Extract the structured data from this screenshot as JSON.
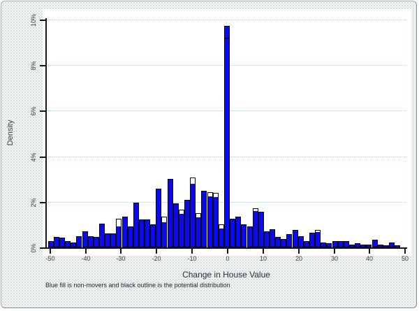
{
  "chart_data": {
    "type": "bar",
    "subtype": "histogram",
    "title": "",
    "xlabel": "Change in House Value",
    "ylabel": "Density",
    "note": "Blue fill is non-movers and black outline is the potential distribution",
    "legend": {
      "fill_meaning": "non-movers",
      "outline_meaning": "potential distribution"
    },
    "x_ticks": [
      -50,
      -40,
      -30,
      -20,
      -10,
      0,
      10,
      20,
      30,
      40,
      50
    ],
    "y_ticks": [
      0,
      2,
      4,
      6,
      8,
      10
    ],
    "y_tick_labels": [
      "0%",
      "2%",
      "4%",
      "6%",
      "8%",
      "10%"
    ],
    "xlim": [
      -52,
      51
    ],
    "ylim": [
      0,
      10
    ],
    "grid": "horizontal-dotted",
    "bin_width": 1.6,
    "units": "percent density",
    "colors": {
      "bar_fill": "#0a0af0",
      "bar_outline": "#000000",
      "gridline": "#8edce9",
      "plot_bg": "#ffffff",
      "page_bg": "#f3f5f5"
    },
    "bars": [
      {
        "x": -49.6,
        "f": 0.28
      },
      {
        "x": -48.0,
        "f": 0.47
      },
      {
        "x": -46.4,
        "f": 0.42
      },
      {
        "x": -44.8,
        "f": 0.28
      },
      {
        "x": -43.2,
        "f": 0.22
      },
      {
        "x": -41.6,
        "f": 0.5
      },
      {
        "x": -40.0,
        "f": 0.72
      },
      {
        "x": -38.4,
        "f": 0.5
      },
      {
        "x": -36.8,
        "f": 0.45
      },
      {
        "x": -35.2,
        "f": 1.05
      },
      {
        "x": -33.6,
        "f": 0.6
      },
      {
        "x": -32.0,
        "f": 0.62
      },
      {
        "x": -30.4,
        "f": 0.95,
        "o": 1.25
      },
      {
        "x": -28.8,
        "f": 1.35
      },
      {
        "x": -27.2,
        "f": 0.92
      },
      {
        "x": -25.6,
        "f": 1.95
      },
      {
        "x": -24.0,
        "f": 1.22
      },
      {
        "x": -22.4,
        "f": 1.22
      },
      {
        "x": -20.8,
        "f": 1.0
      },
      {
        "x": -19.2,
        "f": 2.57
      },
      {
        "x": -17.6,
        "f": 1.15,
        "o": 1.35
      },
      {
        "x": -16.0,
        "f": 3.0
      },
      {
        "x": -14.4,
        "f": 1.93
      },
      {
        "x": -12.8,
        "f": 1.5,
        "o": 1.65
      },
      {
        "x": -11.2,
        "f": 2.1
      },
      {
        "x": -9.6,
        "f": 2.82,
        "o": 3.08
      },
      {
        "x": -8.0,
        "f": 1.36,
        "o": 1.51
      },
      {
        "x": -6.4,
        "f": 2.49
      },
      {
        "x": -4.8,
        "f": 2.27,
        "o": 2.42
      },
      {
        "x": -3.2,
        "f": 2.24,
        "o": 2.39
      },
      {
        "x": -1.6,
        "f": 0.85,
        "o": 1.0
      },
      {
        "x": 0.0,
        "f": 9.72,
        "o": 9.11
      },
      {
        "x": 1.6,
        "f": 1.26
      },
      {
        "x": 3.2,
        "f": 1.36
      },
      {
        "x": 4.8,
        "f": 1.0
      },
      {
        "x": 6.4,
        "f": 0.93
      },
      {
        "x": 8.0,
        "f": 1.62,
        "o": 1.72
      },
      {
        "x": 9.6,
        "f": 1.57
      },
      {
        "x": 11.2,
        "f": 0.7
      },
      {
        "x": 12.8,
        "f": 0.8
      },
      {
        "x": 14.4,
        "f": 0.45
      },
      {
        "x": 16.0,
        "f": 0.36
      },
      {
        "x": 17.6,
        "f": 0.57
      },
      {
        "x": 19.2,
        "f": 0.77
      },
      {
        "x": 20.8,
        "f": 0.48
      },
      {
        "x": 22.4,
        "f": 0.28
      },
      {
        "x": 24.0,
        "f": 0.64
      },
      {
        "x": 25.6,
        "f": 0.71,
        "o": 0.78
      },
      {
        "x": 27.2,
        "f": 0.23
      },
      {
        "x": 28.8,
        "f": 0.18
      },
      {
        "x": 30.4,
        "f": 0.28
      },
      {
        "x": 32.0,
        "f": 0.28
      },
      {
        "x": 33.6,
        "f": 0.28
      },
      {
        "x": 35.2,
        "f": 0.13
      },
      {
        "x": 36.8,
        "f": 0.18
      },
      {
        "x": 38.4,
        "f": 0.12
      },
      {
        "x": 40.0,
        "f": 0.12
      },
      {
        "x": 41.6,
        "f": 0.35
      },
      {
        "x": 43.2,
        "f": 0.12
      },
      {
        "x": 44.8,
        "f": 0.1
      },
      {
        "x": 46.4,
        "f": 0.22
      },
      {
        "x": 48.0,
        "f": 0.1
      }
    ]
  }
}
